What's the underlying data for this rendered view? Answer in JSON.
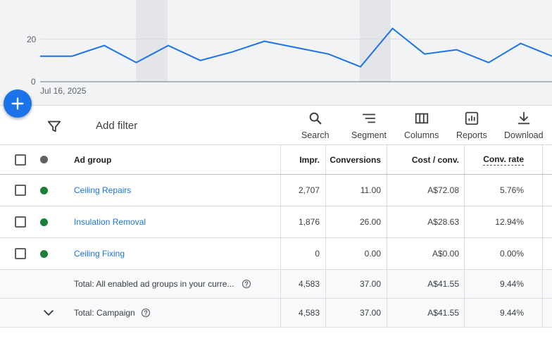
{
  "chart": {
    "y_ticks": [
      "20",
      "0"
    ],
    "x_start_label": "Jul 16, 2025",
    "line_color": "#1a73e8",
    "series_values": [
      12,
      12,
      17,
      9,
      17,
      10,
      14,
      19,
      16,
      13,
      7,
      25,
      13,
      15,
      9,
      18,
      12
    ]
  },
  "fab": {
    "icon": "plus-icon"
  },
  "toolbar": {
    "add_filter": "Add filter",
    "search": "Search",
    "segment": "Segment",
    "columns": "Columns",
    "reports": "Reports",
    "download": "Download"
  },
  "table": {
    "headers": {
      "ad_group": "Ad group",
      "impr": "Impr.",
      "conversions": "Conversions",
      "cost_conv": "Cost / conv.",
      "conv_rate": "Conv. rate"
    },
    "rows": [
      {
        "name": "Ceiling Repairs",
        "impr": "2,707",
        "conversions": "11.00",
        "cost_conv": "A$72.08",
        "conv_rate": "5.76%",
        "status_color": "#188038"
      },
      {
        "name": "Insulation Removal",
        "impr": "1,876",
        "conversions": "26.00",
        "cost_conv": "A$28.63",
        "conv_rate": "12.94%",
        "status_color": "#188038"
      },
      {
        "name": "Ceiling Fixing",
        "impr": "0",
        "conversions": "0.00",
        "cost_conv": "A$0.00",
        "conv_rate": "0.00%",
        "status_color": "#188038"
      }
    ],
    "totals": [
      {
        "label": "Total: All enabled ad groups in your curre...",
        "impr": "4,583",
        "conversions": "37.00",
        "cost_conv": "A$41.55",
        "conv_rate": "9.44%"
      },
      {
        "label": "Total: Campaign",
        "impr": "4,583",
        "conversions": "37.00",
        "cost_conv": "A$41.55",
        "conv_rate": "9.44%"
      }
    ]
  }
}
